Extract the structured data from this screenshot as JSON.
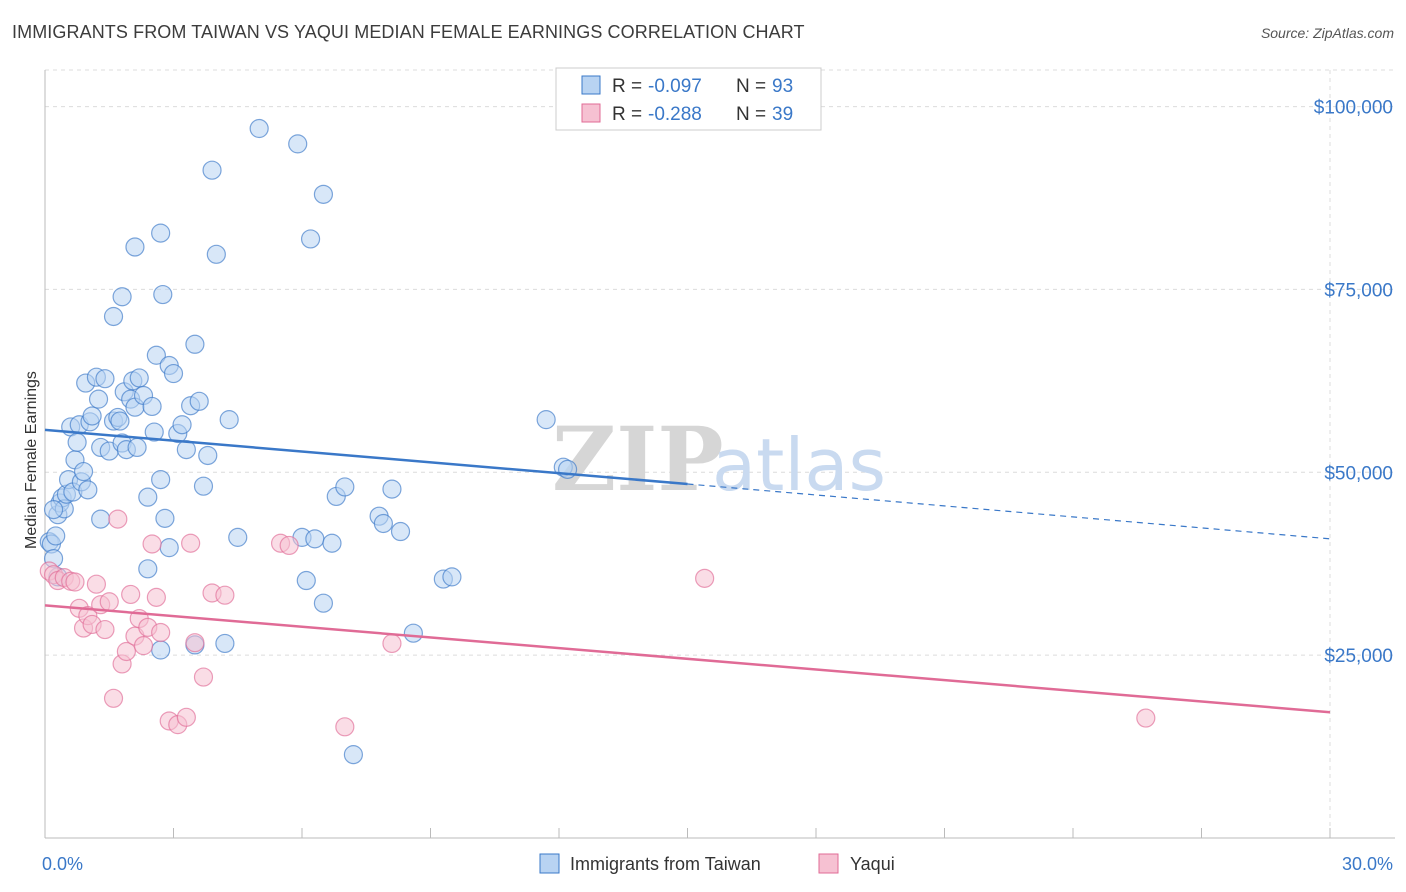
{
  "title": "IMMIGRANTS FROM TAIWAN VS YAQUI MEDIAN FEMALE EARNINGS CORRELATION CHART",
  "source": "Source: ZipAtlas.com",
  "watermark": {
    "zip": "ZIP",
    "atlas": "atlas"
  },
  "colors": {
    "blue": "#3a78c8",
    "blue_fill": "#b8d3f2",
    "pink": "#e06b96",
    "pink_fill": "#f6c1d2",
    "grid": "#dcdcdc"
  },
  "legend": {
    "r_label": "R =",
    "n_label": "N =",
    "rows": [
      {
        "r": "-0.097",
        "n": "93"
      },
      {
        "r": "-0.288",
        "n": "39"
      }
    ]
  },
  "chart_data": {
    "type": "scatter",
    "xlabel": "",
    "ylabel": "Median Female Earnings",
    "xlim": [
      0,
      30
    ],
    "ylim": [
      0,
      105000
    ],
    "x_tick_labels": [
      "0.0%",
      "30.0%"
    ],
    "y_ticks": [
      25000,
      50000,
      75000,
      100000
    ],
    "y_tick_labels": [
      "$25,000",
      "$50,000",
      "$75,000",
      "$100,000"
    ],
    "grid": true,
    "series": [
      {
        "name": "Immigrants from Taiwan",
        "color": "#3a78c8",
        "trend": {
          "x0": 0,
          "y0": 55800,
          "x1": 15,
          "y1": 48400,
          "x_dash_end": 30,
          "y_dash_end": 40900
        },
        "points": [
          [
            0.1,
            40500
          ],
          [
            0.15,
            40200
          ],
          [
            0.2,
            38200
          ],
          [
            0.25,
            41300
          ],
          [
            0.3,
            44200
          ],
          [
            0.35,
            45800
          ],
          [
            0.4,
            46500
          ],
          [
            0.45,
            45000
          ],
          [
            0.5,
            47000
          ],
          [
            0.55,
            49000
          ],
          [
            0.6,
            56200
          ],
          [
            0.65,
            47300
          ],
          [
            0.7,
            51700
          ],
          [
            0.75,
            54100
          ],
          [
            0.8,
            56500
          ],
          [
            0.85,
            48700
          ],
          [
            0.9,
            50100
          ],
          [
            0.95,
            62200
          ],
          [
            1.0,
            47600
          ],
          [
            1.05,
            56900
          ],
          [
            1.1,
            57700
          ],
          [
            1.2,
            63000
          ],
          [
            1.25,
            60000
          ],
          [
            1.3,
            53400
          ],
          [
            1.4,
            62800
          ],
          [
            1.5,
            52900
          ],
          [
            1.6,
            57000
          ],
          [
            1.7,
            57500
          ],
          [
            1.75,
            57000
          ],
          [
            1.8,
            54000
          ],
          [
            1.85,
            61000
          ],
          [
            1.9,
            53100
          ],
          [
            2.0,
            60000
          ],
          [
            2.05,
            62500
          ],
          [
            2.1,
            58900
          ],
          [
            2.15,
            53400
          ],
          [
            2.2,
            62900
          ],
          [
            2.3,
            60500
          ],
          [
            2.4,
            46600
          ],
          [
            2.5,
            59000
          ],
          [
            2.55,
            55500
          ],
          [
            2.6,
            66000
          ],
          [
            2.7,
            49000
          ],
          [
            2.8,
            43700
          ],
          [
            2.9,
            64600
          ],
          [
            3.0,
            63500
          ],
          [
            3.1,
            55300
          ],
          [
            3.2,
            56500
          ],
          [
            3.3,
            53100
          ],
          [
            3.4,
            59100
          ],
          [
            3.5,
            67500
          ],
          [
            3.6,
            59700
          ],
          [
            3.7,
            48100
          ],
          [
            3.8,
            52300
          ],
          [
            1.6,
            71300
          ],
          [
            1.8,
            74000
          ],
          [
            2.1,
            80800
          ],
          [
            2.7,
            82700
          ],
          [
            2.75,
            74300
          ],
          [
            4.0,
            79800
          ],
          [
            4.3,
            57200
          ],
          [
            3.9,
            91300
          ],
          [
            5.0,
            97000
          ],
          [
            5.9,
            94900
          ],
          [
            6.5,
            88000
          ],
          [
            6.2,
            81900
          ],
          [
            6.0,
            41100
          ],
          [
            6.1,
            35200
          ],
          [
            6.3,
            40900
          ],
          [
            6.5,
            32100
          ],
          [
            6.7,
            40300
          ],
          [
            6.8,
            46700
          ],
          [
            7.0,
            48000
          ],
          [
            7.8,
            44000
          ],
          [
            7.9,
            43000
          ],
          [
            8.1,
            47700
          ],
          [
            8.3,
            41900
          ],
          [
            8.6,
            28000
          ],
          [
            9.3,
            35400
          ],
          [
            9.5,
            35700
          ],
          [
            11.7,
            57200
          ],
          [
            12.1,
            50700
          ],
          [
            12.2,
            50400
          ],
          [
            7.2,
            11400
          ],
          [
            2.4,
            36800
          ],
          [
            2.9,
            39700
          ],
          [
            4.2,
            26600
          ],
          [
            3.5,
            26400
          ],
          [
            2.7,
            25700
          ],
          [
            4.5,
            41100
          ],
          [
            1.3,
            43600
          ],
          [
            0.3,
            35700
          ],
          [
            0.2,
            44900
          ]
        ]
      },
      {
        "name": "Yaqui",
        "color": "#e06b96",
        "trend": {
          "x0": 0,
          "y0": 31800,
          "x1": 30,
          "y1": 17200
        },
        "points": [
          [
            0.1,
            36500
          ],
          [
            0.2,
            36000
          ],
          [
            0.3,
            35200
          ],
          [
            0.45,
            35600
          ],
          [
            0.6,
            35100
          ],
          [
            0.7,
            35000
          ],
          [
            0.8,
            31400
          ],
          [
            0.9,
            28700
          ],
          [
            1.0,
            30400
          ],
          [
            1.1,
            29200
          ],
          [
            1.2,
            34700
          ],
          [
            1.3,
            31900
          ],
          [
            1.4,
            28500
          ],
          [
            1.5,
            32300
          ],
          [
            1.6,
            19100
          ],
          [
            1.7,
            43600
          ],
          [
            1.8,
            23800
          ],
          [
            1.9,
            25500
          ],
          [
            2.0,
            33300
          ],
          [
            2.1,
            27600
          ],
          [
            2.2,
            30000
          ],
          [
            2.3,
            26300
          ],
          [
            2.4,
            28800
          ],
          [
            2.5,
            40200
          ],
          [
            2.6,
            32900
          ],
          [
            2.7,
            28100
          ],
          [
            2.9,
            16000
          ],
          [
            3.1,
            15500
          ],
          [
            3.3,
            16500
          ],
          [
            3.4,
            40300
          ],
          [
            3.5,
            26700
          ],
          [
            3.7,
            22000
          ],
          [
            3.9,
            33500
          ],
          [
            4.2,
            33200
          ],
          [
            5.5,
            40300
          ],
          [
            5.7,
            40000
          ],
          [
            7.0,
            15200
          ],
          [
            8.1,
            26600
          ],
          [
            15.4,
            35500
          ],
          [
            25.7,
            16400
          ]
        ]
      }
    ]
  }
}
